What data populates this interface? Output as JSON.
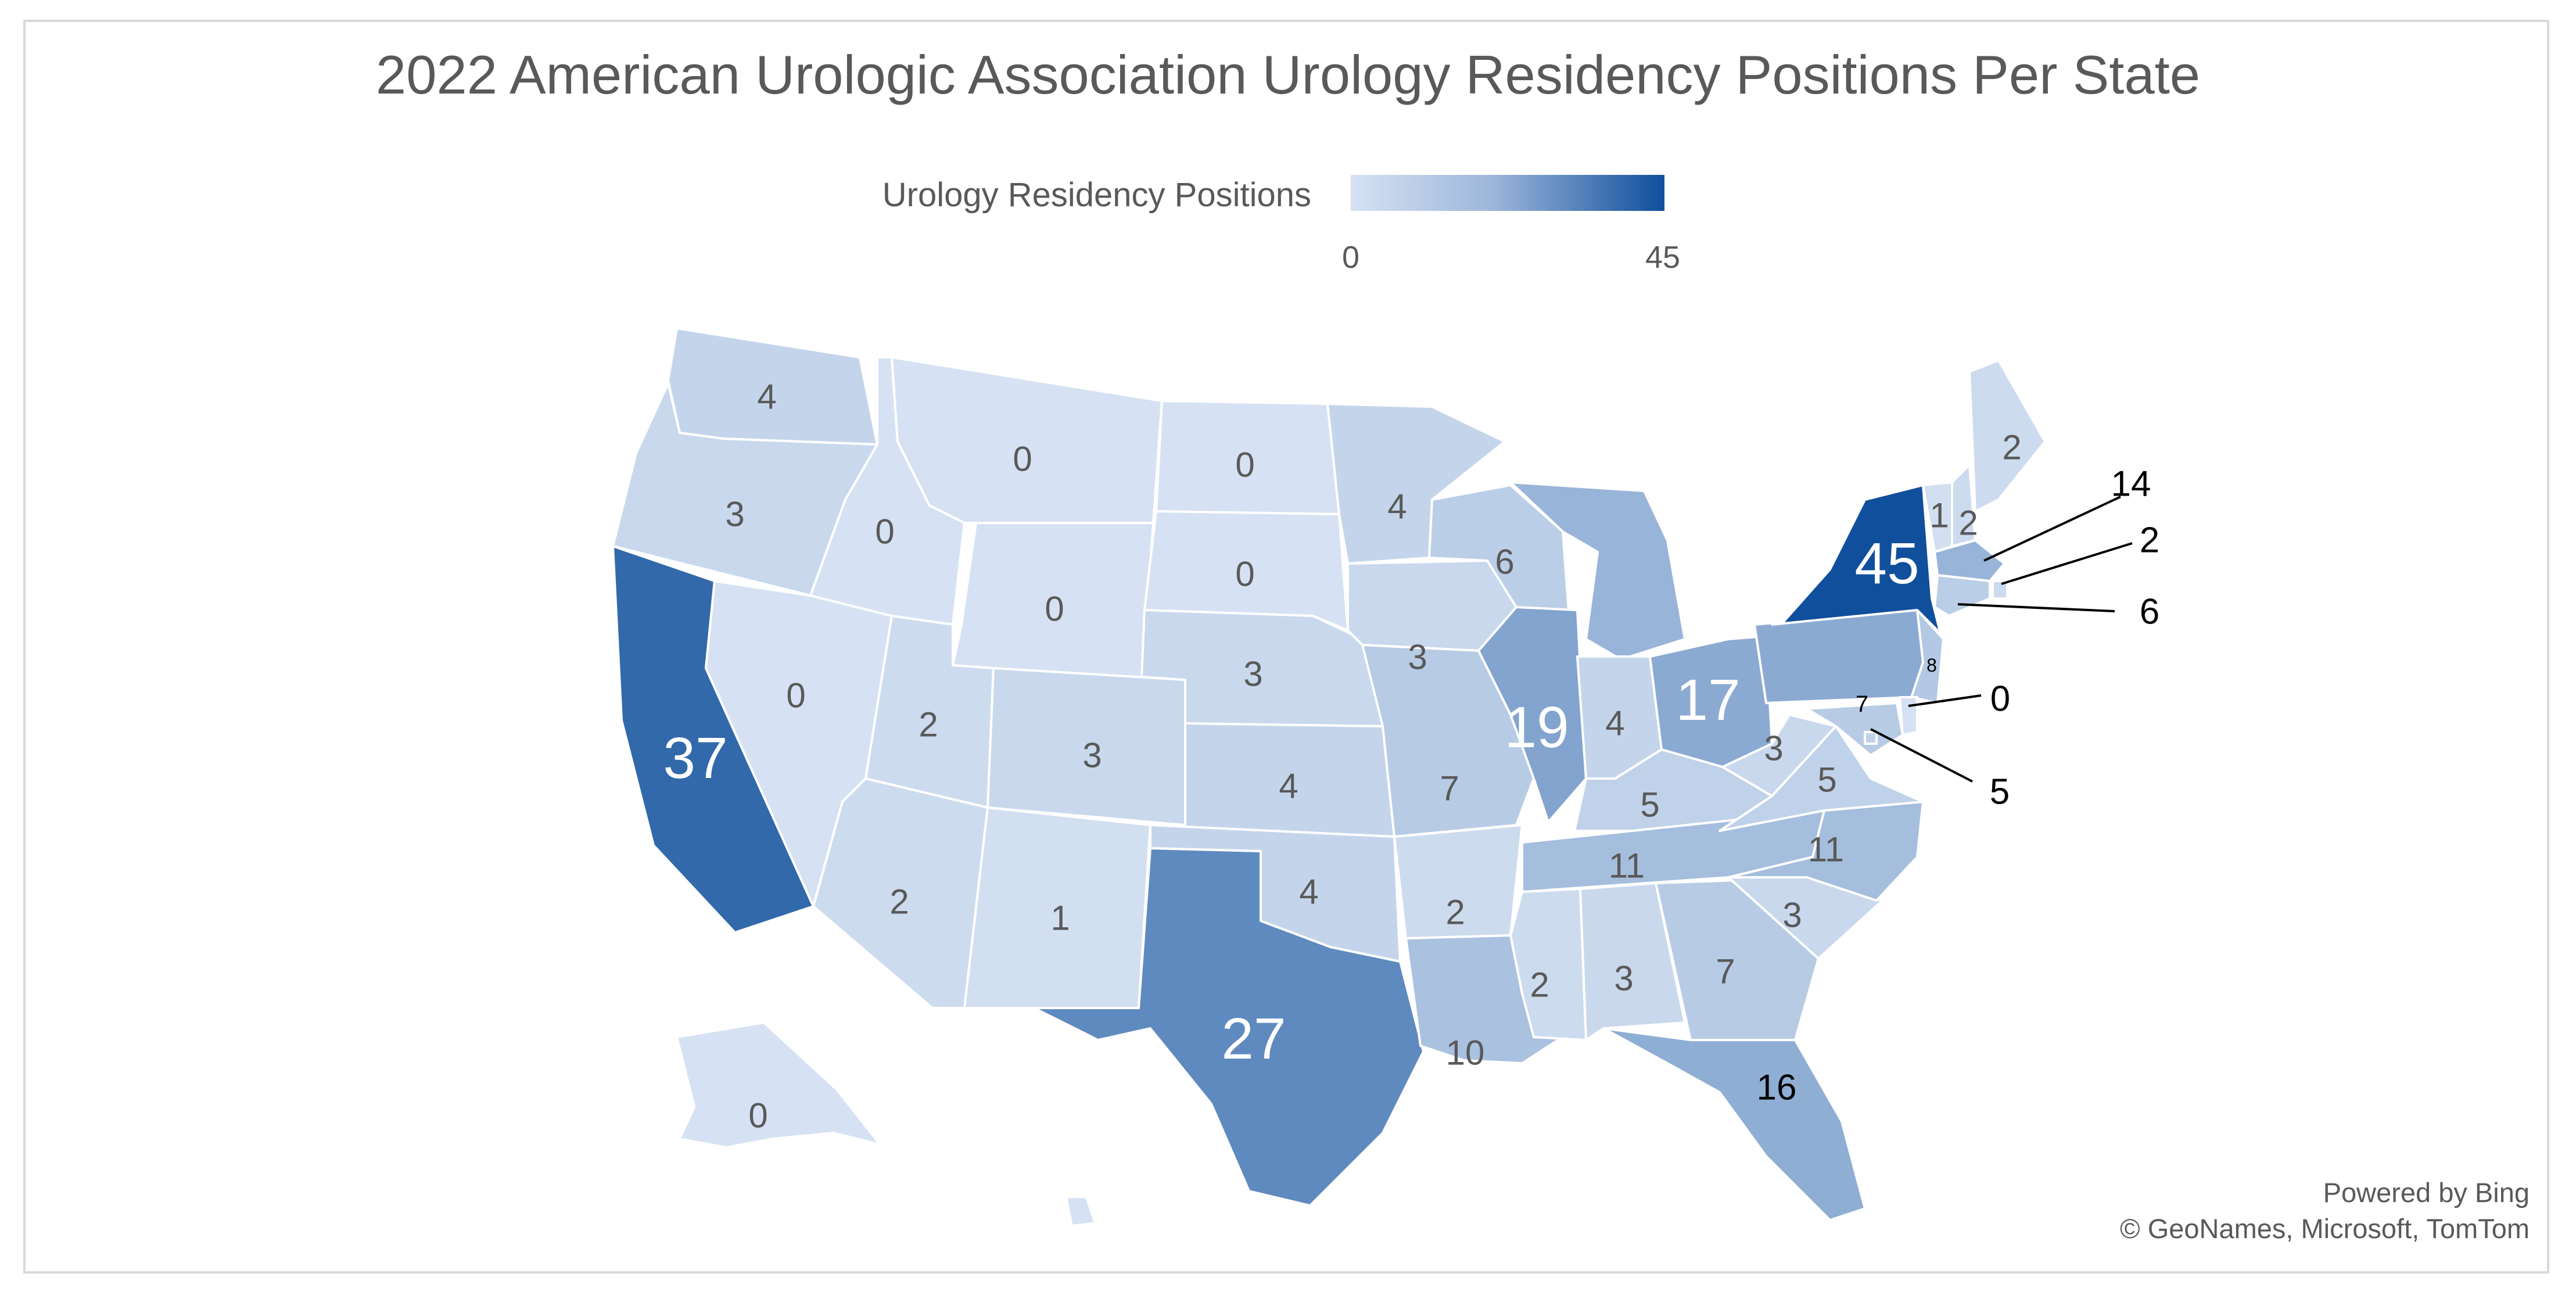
{
  "title": "2022 American Urologic Association Urology Residency Positions Per State",
  "legend": {
    "title": "Urology Residency Positions",
    "min": "0",
    "max": "45",
    "color_low": "#d6e2f3",
    "color_high": "#0f4f9c"
  },
  "attribution": {
    "line1": "Powered by Bing",
    "line2": "© GeoNames, Microsoft, TomTom"
  },
  "map_data": {
    "type": "choropleth",
    "region": "United States",
    "value_range": [
      0,
      45
    ],
    "states": [
      {
        "name": "Washington",
        "value": 4
      },
      {
        "name": "Oregon",
        "value": 3
      },
      {
        "name": "California",
        "value": 37
      },
      {
        "name": "Idaho",
        "value": 0
      },
      {
        "name": "Nevada",
        "value": 0
      },
      {
        "name": "Montana",
        "value": 0
      },
      {
        "name": "Wyoming",
        "value": 0
      },
      {
        "name": "Utah",
        "value": 2
      },
      {
        "name": "Arizona",
        "value": 2
      },
      {
        "name": "Colorado",
        "value": 3
      },
      {
        "name": "New Mexico",
        "value": 1
      },
      {
        "name": "North Dakota",
        "value": 0
      },
      {
        "name": "South Dakota",
        "value": 0
      },
      {
        "name": "Nebraska",
        "value": 3
      },
      {
        "name": "Kansas",
        "value": 4
      },
      {
        "name": "Oklahoma",
        "value": 4
      },
      {
        "name": "Texas",
        "value": 27
      },
      {
        "name": "Minnesota",
        "value": 4
      },
      {
        "name": "Iowa",
        "value": 3
      },
      {
        "name": "Missouri",
        "value": 7
      },
      {
        "name": "Arkansas",
        "value": 2
      },
      {
        "name": "Louisiana",
        "value": 10
      },
      {
        "name": "Wisconsin",
        "value": 6
      },
      {
        "name": "Illinois",
        "value": 19
      },
      {
        "name": "Michigan",
        "value": 14
      },
      {
        "name": "Indiana",
        "value": 4
      },
      {
        "name": "Ohio",
        "value": 17
      },
      {
        "name": "Kentucky",
        "value": 5
      },
      {
        "name": "Tennessee",
        "value": 11
      },
      {
        "name": "Mississippi",
        "value": 2
      },
      {
        "name": "Alabama",
        "value": 3
      },
      {
        "name": "Georgia",
        "value": 7
      },
      {
        "name": "Florida",
        "value": 16
      },
      {
        "name": "South Carolina",
        "value": 3
      },
      {
        "name": "North Carolina",
        "value": 11
      },
      {
        "name": "Virginia",
        "value": 5
      },
      {
        "name": "West Virginia",
        "value": 3
      },
      {
        "name": "Pennsylvania",
        "value": 17
      },
      {
        "name": "New York",
        "value": 45
      },
      {
        "name": "Vermont",
        "value": 1
      },
      {
        "name": "New Hampshire",
        "value": 2
      },
      {
        "name": "Maine",
        "value": 2
      },
      {
        "name": "Massachusetts",
        "value": 14
      },
      {
        "name": "Rhode Island",
        "value": 2
      },
      {
        "name": "Connecticut",
        "value": 6
      },
      {
        "name": "New Jersey",
        "value": 8
      },
      {
        "name": "Delaware",
        "value": 0
      },
      {
        "name": "Maryland",
        "value": 7
      },
      {
        "name": "District of Columbia",
        "value": 5
      },
      {
        "name": "Alaska",
        "value": 0
      },
      {
        "name": "Hawaii",
        "value": 0
      }
    ]
  }
}
